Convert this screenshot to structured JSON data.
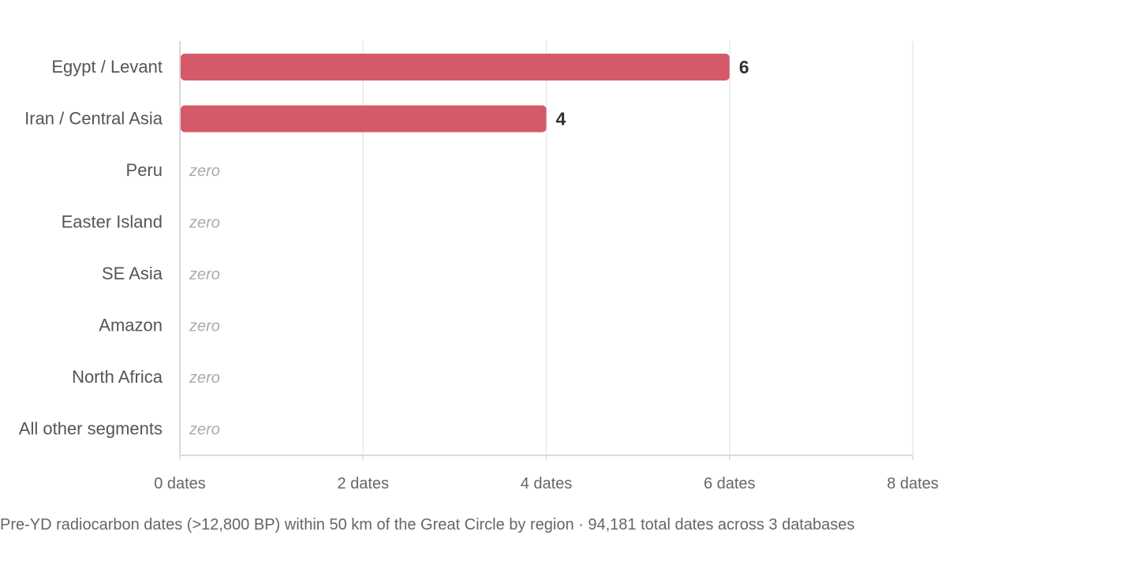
{
  "chart_data": {
    "type": "bar",
    "orientation": "horizontal",
    "categories": [
      "Egypt / Levant",
      "Iran / Central Asia",
      "Peru",
      "Easter Island",
      "SE Asia",
      "Amazon",
      "North Africa",
      "All other segments"
    ],
    "values": [
      6,
      4,
      0,
      0,
      0,
      0,
      0,
      0
    ],
    "value_labels": [
      "6",
      "4",
      "zero",
      "zero",
      "zero",
      "zero",
      "zero",
      "zero"
    ],
    "x_ticks": [
      0,
      2,
      4,
      6,
      8
    ],
    "x_tick_labels": [
      "0 dates",
      "2 dates",
      "4 dates",
      "6 dates",
      "8 dates"
    ],
    "xlim": [
      0,
      8
    ],
    "grid": true,
    "legend": "none",
    "title": "",
    "xlabel": "",
    "ylabel": "",
    "colors": {
      "bar": "#d45a6a",
      "grid": "#e8e8e8",
      "axis": "#d9d9d9",
      "category_label": "#555555",
      "tick_label": "#666666",
      "value_label": "#333333",
      "zero_label": "#aaaaaa"
    }
  },
  "caption": "Pre-YD radiocarbon dates (>12,800 BP) within 50 km of the Great Circle by region · 94,181 total dates across 3 databases"
}
